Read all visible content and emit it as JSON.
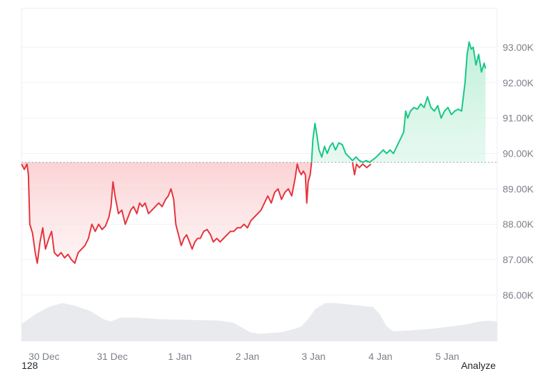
{
  "chart_data": {
    "type": "line",
    "baseline": 89.75,
    "ylim": [
      84.7,
      94.1
    ],
    "x_range": [
      0,
      6.97
    ],
    "yticks": [
      "93.00K",
      "92.00K",
      "91.00K",
      "90.00K",
      "89.00K",
      "88.00K",
      "87.00K",
      "86.00K"
    ],
    "ytick_values": [
      93,
      92,
      91,
      90,
      89,
      88,
      87,
      86
    ],
    "xticks": [
      "30 Dec",
      "31 Dec",
      "1 Jan",
      "2 Jan",
      "3 Jan",
      "4 Jan",
      "5 Jan"
    ],
    "xtick_values": [
      0.33,
      1.33,
      2.32,
      3.31,
      4.28,
      5.26,
      6.24
    ],
    "series": [
      {
        "values": [
          [
            0.0,
            89.7
          ],
          [
            0.04,
            89.55
          ],
          [
            0.08,
            89.7
          ],
          [
            0.1,
            89.4
          ],
          [
            0.12,
            88.0
          ],
          [
            0.16,
            87.75
          ],
          [
            0.2,
            87.2
          ],
          [
            0.23,
            86.9
          ],
          [
            0.27,
            87.5
          ],
          [
            0.31,
            87.9
          ],
          [
            0.35,
            87.3
          ],
          [
            0.4,
            87.6
          ],
          [
            0.44,
            87.8
          ],
          [
            0.48,
            87.2
          ],
          [
            0.53,
            87.1
          ],
          [
            0.58,
            87.2
          ],
          [
            0.63,
            87.05
          ],
          [
            0.68,
            87.15
          ],
          [
            0.73,
            87.0
          ],
          [
            0.78,
            86.9
          ],
          [
            0.83,
            87.2
          ],
          [
            0.88,
            87.3
          ],
          [
            0.93,
            87.4
          ],
          [
            0.98,
            87.6
          ],
          [
            1.03,
            88.0
          ],
          [
            1.08,
            87.8
          ],
          [
            1.13,
            88.0
          ],
          [
            1.18,
            87.85
          ],
          [
            1.23,
            87.95
          ],
          [
            1.28,
            88.2
          ],
          [
            1.31,
            88.5
          ],
          [
            1.34,
            89.2
          ],
          [
            1.37,
            88.8
          ],
          [
            1.42,
            88.3
          ],
          [
            1.47,
            88.4
          ],
          [
            1.52,
            88.0
          ],
          [
            1.56,
            88.2
          ],
          [
            1.6,
            88.4
          ],
          [
            1.64,
            88.5
          ],
          [
            1.69,
            88.3
          ],
          [
            1.73,
            88.6
          ],
          [
            1.77,
            88.5
          ],
          [
            1.81,
            88.6
          ],
          [
            1.86,
            88.3
          ],
          [
            1.91,
            88.4
          ],
          [
            1.96,
            88.5
          ],
          [
            2.01,
            88.6
          ],
          [
            2.06,
            88.5
          ],
          [
            2.11,
            88.7
          ],
          [
            2.15,
            88.8
          ],
          [
            2.19,
            89.0
          ],
          [
            2.23,
            88.7
          ],
          [
            2.26,
            88.0
          ],
          [
            2.3,
            87.7
          ],
          [
            2.34,
            87.4
          ],
          [
            2.38,
            87.6
          ],
          [
            2.42,
            87.7
          ],
          [
            2.46,
            87.5
          ],
          [
            2.5,
            87.3
          ],
          [
            2.54,
            87.5
          ],
          [
            2.58,
            87.6
          ],
          [
            2.62,
            87.6
          ],
          [
            2.67,
            87.8
          ],
          [
            2.72,
            87.85
          ],
          [
            2.77,
            87.7
          ],
          [
            2.81,
            87.5
          ],
          [
            2.86,
            87.6
          ],
          [
            2.91,
            87.5
          ],
          [
            2.96,
            87.6
          ],
          [
            3.01,
            87.7
          ],
          [
            3.06,
            87.8
          ],
          [
            3.11,
            87.8
          ],
          [
            3.16,
            87.9
          ],
          [
            3.21,
            87.9
          ],
          [
            3.26,
            88.0
          ],
          [
            3.31,
            87.9
          ],
          [
            3.36,
            88.1
          ],
          [
            3.41,
            88.2
          ],
          [
            3.46,
            88.3
          ],
          [
            3.51,
            88.4
          ],
          [
            3.56,
            88.6
          ],
          [
            3.61,
            88.8
          ],
          [
            3.66,
            88.6
          ],
          [
            3.71,
            88.9
          ],
          [
            3.76,
            89.0
          ],
          [
            3.81,
            88.7
          ],
          [
            3.86,
            88.9
          ],
          [
            3.91,
            89.0
          ],
          [
            3.96,
            88.8
          ],
          [
            4.01,
            89.3
          ],
          [
            4.04,
            89.7
          ],
          [
            4.07,
            89.5
          ],
          [
            4.1,
            89.4
          ],
          [
            4.13,
            89.5
          ],
          [
            4.16,
            89.4
          ],
          [
            4.18,
            88.6
          ],
          [
            4.2,
            89.2
          ],
          [
            4.23,
            89.4
          ],
          [
            4.25,
            89.75
          ]
        ]
      },
      {
        "values": [
          [
            4.25,
            89.75
          ],
          [
            4.27,
            90.4
          ],
          [
            4.3,
            90.85
          ],
          [
            4.33,
            90.5
          ],
          [
            4.36,
            90.1
          ],
          [
            4.4,
            89.9
          ],
          [
            4.44,
            90.2
          ],
          [
            4.48,
            90.0
          ],
          [
            4.52,
            90.2
          ],
          [
            4.56,
            90.3
          ],
          [
            4.6,
            90.1
          ],
          [
            4.65,
            90.3
          ],
          [
            4.7,
            90.25
          ],
          [
            4.75,
            90.0
          ],
          [
            4.8,
            89.9
          ],
          [
            4.85,
            89.8
          ],
          [
            4.9,
            89.9
          ],
          [
            4.95,
            89.8
          ],
          [
            5.0,
            89.75
          ],
          [
            5.05,
            89.8
          ],
          [
            5.1,
            89.75
          ],
          [
            5.2,
            89.9
          ],
          [
            5.25,
            90.0
          ],
          [
            5.3,
            90.1
          ],
          [
            5.35,
            90.0
          ],
          [
            5.4,
            90.1
          ],
          [
            5.45,
            90.0
          ],
          [
            5.5,
            90.2
          ],
          [
            5.55,
            90.4
          ],
          [
            5.6,
            90.6
          ],
          [
            5.63,
            91.2
          ],
          [
            5.66,
            91.0
          ],
          [
            5.7,
            91.2
          ],
          [
            5.75,
            91.3
          ],
          [
            5.8,
            91.25
          ],
          [
            5.85,
            91.4
          ],
          [
            5.9,
            91.3
          ],
          [
            5.95,
            91.6
          ],
          [
            6.0,
            91.3
          ],
          [
            6.05,
            91.2
          ],
          [
            6.1,
            91.35
          ],
          [
            6.15,
            91.0
          ],
          [
            6.2,
            91.2
          ],
          [
            6.25,
            91.3
          ],
          [
            6.3,
            91.1
          ],
          [
            6.35,
            91.2
          ],
          [
            6.4,
            91.25
          ],
          [
            6.45,
            91.2
          ],
          [
            6.5,
            92.0
          ],
          [
            6.53,
            92.8
          ],
          [
            6.56,
            93.15
          ],
          [
            6.59,
            92.95
          ],
          [
            6.62,
            93.0
          ],
          [
            6.66,
            92.5
          ],
          [
            6.7,
            92.8
          ],
          [
            6.74,
            92.3
          ],
          [
            6.78,
            92.55
          ],
          [
            6.8,
            92.4
          ]
        ]
      },
      {
        "values": [
          [
            4.85,
            89.75
          ],
          [
            4.88,
            89.4
          ],
          [
            4.91,
            89.7
          ],
          [
            4.95,
            89.6
          ],
          [
            5.0,
            89.7
          ],
          [
            5.06,
            89.6
          ],
          [
            5.12,
            89.7
          ]
        ]
      }
    ],
    "volume": {
      "values": [
        [
          0.0,
          0.35
        ],
        [
          0.2,
          0.55
        ],
        [
          0.4,
          0.7
        ],
        [
          0.6,
          0.78
        ],
        [
          0.8,
          0.72
        ],
        [
          1.0,
          0.62
        ],
        [
          1.2,
          0.45
        ],
        [
          1.3,
          0.4
        ],
        [
          1.45,
          0.48
        ],
        [
          1.7,
          0.48
        ],
        [
          2.0,
          0.45
        ],
        [
          2.3,
          0.44
        ],
        [
          2.6,
          0.43
        ],
        [
          2.9,
          0.42
        ],
        [
          3.1,
          0.38
        ],
        [
          3.2,
          0.3
        ],
        [
          3.35,
          0.18
        ],
        [
          3.5,
          0.15
        ],
        [
          3.8,
          0.18
        ],
        [
          4.0,
          0.25
        ],
        [
          4.1,
          0.3
        ],
        [
          4.2,
          0.45
        ],
        [
          4.3,
          0.65
        ],
        [
          4.45,
          0.78
        ],
        [
          4.6,
          0.78
        ],
        [
          4.8,
          0.75
        ],
        [
          5.0,
          0.72
        ],
        [
          5.15,
          0.7
        ],
        [
          5.25,
          0.55
        ],
        [
          5.35,
          0.3
        ],
        [
          5.45,
          0.2
        ],
        [
          5.7,
          0.22
        ],
        [
          6.0,
          0.25
        ],
        [
          6.3,
          0.3
        ],
        [
          6.55,
          0.35
        ],
        [
          6.7,
          0.4
        ],
        [
          6.85,
          0.42
        ],
        [
          6.97,
          0.4
        ]
      ]
    },
    "colors": {
      "down": "#e5333c",
      "up": "#16c784",
      "down_fill": "#fbd0d2",
      "up_fill": "#c6f2de",
      "volume": "#e8eaee",
      "grid": "#eef0f3"
    }
  },
  "footer": {
    "left": "128",
    "right": "Analyze"
  }
}
